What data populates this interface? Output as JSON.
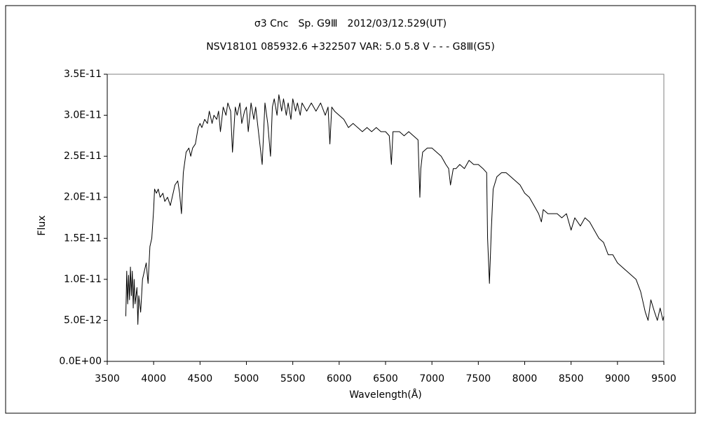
{
  "chart_data": {
    "type": "line",
    "title": "σ3 Cnc　Sp. G9Ⅲ　2012/03/12.529(UT)",
    "subtitle": "NSV18101 085932.6 +322507 VAR: 5.0 5.8 V - - - G8Ⅲ(G5)",
    "x_label": "Wavelength(Å)",
    "y_label": "Flux",
    "xlim": [
      3500,
      9500
    ],
    "xticks": [
      3500,
      4000,
      4500,
      5000,
      5500,
      6000,
      6500,
      7000,
      7500,
      8000,
      8500,
      9000,
      9500
    ],
    "ylim": [
      0,
      3.5e-11
    ],
    "yticks": [
      {
        "value": 0,
        "label": "0.0E+00"
      },
      {
        "value": 5e-12,
        "label": "5.0E-12"
      },
      {
        "value": 1e-11,
        "label": "1.0E-11"
      },
      {
        "value": 1.5e-11,
        "label": "1.5E-11"
      },
      {
        "value": 2e-11,
        "label": "2.0E-11"
      },
      {
        "value": 2.5e-11,
        "label": "2.5E-11"
      },
      {
        "value": 3e-11,
        "label": "3.0E-11"
      },
      {
        "value": 3.5e-11,
        "label": "3.5E-11"
      }
    ],
    "grid": false,
    "color": "#000000",
    "x": [
      3700,
      3710,
      3720,
      3730,
      3740,
      3750,
      3760,
      3770,
      3780,
      3790,
      3800,
      3820,
      3830,
      3840,
      3860,
      3880,
      3900,
      3920,
      3940,
      3960,
      3980,
      4000,
      4010,
      4030,
      4050,
      4070,
      4100,
      4120,
      4150,
      4180,
      4200,
      4230,
      4260,
      4280,
      4300,
      4320,
      4350,
      4380,
      4400,
      4420,
      4450,
      4480,
      4500,
      4520,
      4550,
      4580,
      4600,
      4630,
      4650,
      4680,
      4700,
      4720,
      4750,
      4780,
      4800,
      4830,
      4850,
      4880,
      4900,
      4930,
      4950,
      4980,
      5000,
      5020,
      5050,
      5080,
      5100,
      5130,
      5170,
      5200,
      5230,
      5260,
      5280,
      5300,
      5330,
      5350,
      5380,
      5400,
      5430,
      5450,
      5480,
      5500,
      5530,
      5550,
      5580,
      5600,
      5650,
      5700,
      5750,
      5800,
      5850,
      5880,
      5900,
      5920,
      5950,
      6000,
      6050,
      6100,
      6150,
      6200,
      6250,
      6300,
      6350,
      6400,
      6450,
      6500,
      6540,
      6563,
      6580,
      6650,
      6700,
      6750,
      6800,
      6850,
      6870,
      6880,
      6900,
      6950,
      7000,
      7050,
      7100,
      7150,
      7180,
      7200,
      7230,
      7260,
      7300,
      7350,
      7400,
      7450,
      7500,
      7550,
      7590,
      7600,
      7620,
      7640,
      7660,
      7700,
      7750,
      7800,
      7850,
      7900,
      7950,
      8000,
      8050,
      8100,
      8150,
      8180,
      8200,
      8250,
      8300,
      8350,
      8400,
      8450,
      8500,
      8540,
      8600,
      8650,
      8700,
      8750,
      8800,
      8850,
      8900,
      8950,
      9000,
      9050,
      9100,
      9150,
      9200,
      9250,
      9300,
      9330,
      9360,
      9400,
      9430,
      9460,
      9490,
      9500
    ],
    "values": [
      5.5e-12,
      1.1e-11,
      7e-12,
      1.05e-11,
      7.5e-12,
      1.15e-11,
      8e-12,
      1.1e-11,
      6.5e-12,
      1e-11,
      7e-12,
      9e-12,
      4.5e-12,
      8e-12,
      6e-12,
      1e-11,
      1.1e-11,
      1.2e-11,
      9.5e-12,
      1.4e-11,
      1.5e-11,
      1.85e-11,
      2.1e-11,
      2.05e-11,
      2.1e-11,
      2e-11,
      2.05e-11,
      1.95e-11,
      2e-11,
      1.9e-11,
      2e-11,
      2.15e-11,
      2.2e-11,
      2.05e-11,
      1.8e-11,
      2.3e-11,
      2.55e-11,
      2.6e-11,
      2.5e-11,
      2.6e-11,
      2.65e-11,
      2.85e-11,
      2.9e-11,
      2.85e-11,
      2.95e-11,
      2.9e-11,
      3.05e-11,
      2.9e-11,
      3e-11,
      2.95e-11,
      3.05e-11,
      2.8e-11,
      3.1e-11,
      3e-11,
      3.15e-11,
      3.05e-11,
      2.55e-11,
      3.1e-11,
      3e-11,
      3.15e-11,
      2.9e-11,
      3.05e-11,
      3.1e-11,
      2.8e-11,
      3.15e-11,
      2.95e-11,
      3.1e-11,
      2.8e-11,
      2.4e-11,
      3.15e-11,
      2.9e-11,
      2.5e-11,
      3.1e-11,
      3.2e-11,
      3e-11,
      3.25e-11,
      3.05e-11,
      3.2e-11,
      3e-11,
      3.15e-11,
      2.95e-11,
      3.2e-11,
      3.05e-11,
      3.15e-11,
      3e-11,
      3.15e-11,
      3.05e-11,
      3.15e-11,
      3.05e-11,
      3.15e-11,
      3e-11,
      3.1e-11,
      2.65e-11,
      3.1e-11,
      3.05e-11,
      3e-11,
      2.95e-11,
      2.85e-11,
      2.9e-11,
      2.85e-11,
      2.8e-11,
      2.85e-11,
      2.8e-11,
      2.85e-11,
      2.8e-11,
      2.8e-11,
      2.75e-11,
      2.4e-11,
      2.8e-11,
      2.8e-11,
      2.75e-11,
      2.8e-11,
      2.75e-11,
      2.7e-11,
      2e-11,
      2.35e-11,
      2.55e-11,
      2.6e-11,
      2.6e-11,
      2.55e-11,
      2.5e-11,
      2.4e-11,
      2.35e-11,
      2.15e-11,
      2.35e-11,
      2.35e-11,
      2.4e-11,
      2.35e-11,
      2.45e-11,
      2.4e-11,
      2.4e-11,
      2.35e-11,
      2.3e-11,
      1.5e-11,
      9.5e-12,
      1.6e-11,
      2.1e-11,
      2.25e-11,
      2.3e-11,
      2.3e-11,
      2.25e-11,
      2.2e-11,
      2.15e-11,
      2.05e-11,
      2e-11,
      1.9e-11,
      1.8e-11,
      1.7e-11,
      1.85e-11,
      1.8e-11,
      1.8e-11,
      1.8e-11,
      1.75e-11,
      1.8e-11,
      1.6e-11,
      1.75e-11,
      1.65e-11,
      1.75e-11,
      1.7e-11,
      1.6e-11,
      1.5e-11,
      1.45e-11,
      1.3e-11,
      1.3e-11,
      1.2e-11,
      1.15e-11,
      1.1e-11,
      1.05e-11,
      1e-11,
      8.5e-12,
      6e-12,
      5e-12,
      7.5e-12,
      6e-12,
      5e-12,
      6.5e-12,
      5e-12,
      5.5e-12
    ]
  }
}
